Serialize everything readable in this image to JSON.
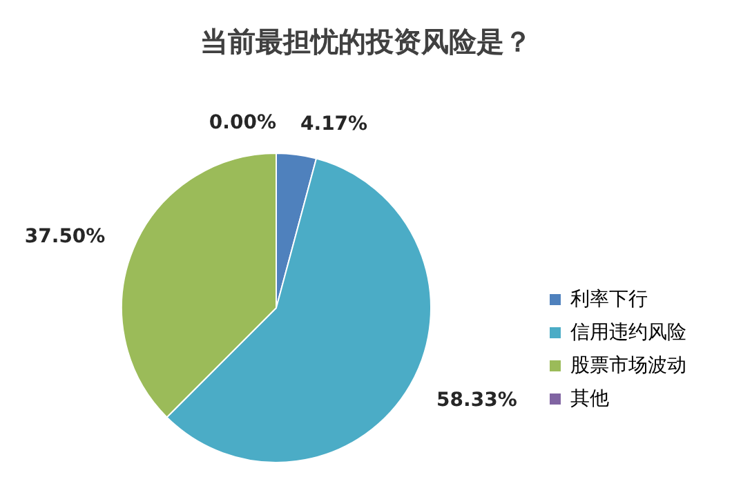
{
  "chart_data": {
    "type": "pie",
    "title": "当前最担忧的投资风险是？",
    "categories": [
      "利率下行",
      "信用违约风险",
      "股票市场波动",
      "其他"
    ],
    "values": [
      4.17,
      58.33,
      37.5,
      0.0
    ],
    "value_labels": [
      "4.17%",
      "58.33%",
      "37.50%",
      "0.00%"
    ],
    "colors": [
      "#4f81bd",
      "#4bacc6",
      "#9bbb59",
      "#8064a2"
    ],
    "legend": "bottom right"
  }
}
